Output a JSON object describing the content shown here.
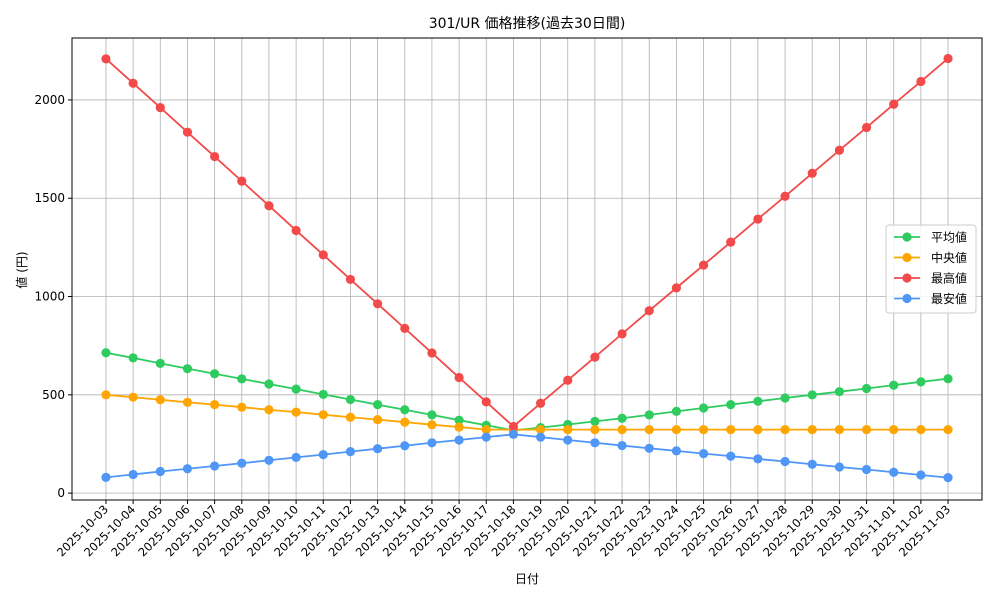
{
  "chart_data": {
    "type": "line",
    "title": "301/UR 価格推移(過去30日間)",
    "xlabel": "日付",
    "ylabel": "値 (円)",
    "ylim": [
      -35,
      2315
    ],
    "yticks": [
      0,
      500,
      1000,
      1500,
      2000
    ],
    "grid": true,
    "legend_position": "center-right",
    "categories": [
      "2025-10-03",
      "2025-10-04",
      "2025-10-05",
      "2025-10-06",
      "2025-10-07",
      "2025-10-08",
      "2025-10-09",
      "2025-10-10",
      "2025-10-11",
      "2025-10-12",
      "2025-10-13",
      "2025-10-14",
      "2025-10-15",
      "2025-10-16",
      "2025-10-17",
      "2025-10-18",
      "2025-10-19",
      "2025-10-20",
      "2025-10-21",
      "2025-10-22",
      "2025-10-23",
      "2025-10-24",
      "2025-10-25",
      "2025-10-26",
      "2025-10-27",
      "2025-10-28",
      "2025-10-29",
      "2025-10-30",
      "2025-10-31",
      "2025-11-01",
      "2025-11-02",
      "2025-11-03"
    ],
    "series": [
      {
        "name": "平均値",
        "color": "#2ecc5f",
        "values": [
          714,
          688,
          660,
          633,
          607,
          581,
          555,
          529,
          502,
          476,
          450,
          424,
          398,
          371,
          345,
          319,
          333,
          349,
          365,
          381,
          398,
          416,
          433,
          450,
          467,
          484,
          500,
          516,
          532,
          549,
          566,
          582
        ]
      },
      {
        "name": "中央値",
        "color": "#ffa500",
        "values": [
          500,
          488,
          475,
          462,
          450,
          437,
          424,
          412,
          399,
          386,
          374,
          361,
          348,
          336,
          323,
          323,
          323,
          323,
          323,
          323,
          323,
          323,
          323,
          323,
          323,
          323,
          323,
          323,
          323,
          323,
          323,
          323
        ]
      },
      {
        "name": "最高値",
        "color": "#f24a4a",
        "values": [
          2209,
          2085,
          1961,
          1836,
          1712,
          1587,
          1462,
          1336,
          1212,
          1087,
          963,
          838,
          713,
          588,
          464,
          339,
          457,
          574,
          692,
          810,
          928,
          1044,
          1160,
          1277,
          1394,
          1510,
          1627,
          1744,
          1860,
          1978,
          2094,
          2211
        ]
      },
      {
        "name": "最安値",
        "color": "#4f96f7",
        "values": [
          80,
          95,
          110,
          124,
          138,
          152,
          167,
          182,
          196,
          211,
          226,
          241,
          256,
          270,
          285,
          299,
          285,
          270,
          256,
          242,
          228,
          215,
          201,
          188,
          174,
          161,
          147,
          133,
          120,
          106,
          92,
          79
        ]
      }
    ]
  }
}
